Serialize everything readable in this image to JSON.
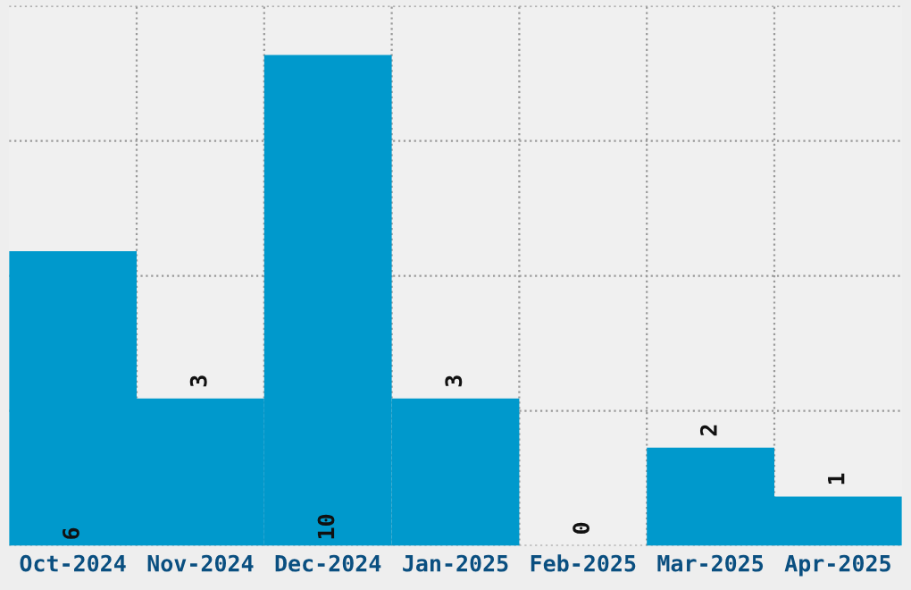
{
  "chart_data": {
    "type": "bar",
    "categories": [
      "Oct-2024",
      "Nov-2024",
      "Dec-2024",
      "Jan-2025",
      "Feb-2025",
      "Mar-2025",
      "Apr-2025"
    ],
    "values": [
      6,
      3,
      10,
      3,
      0,
      2,
      1
    ],
    "color": "#0099cc",
    "ylim": [
      0,
      11
    ],
    "yticks": [
      {
        "value": 0,
        "label": null
      },
      {
        "value": 2.75,
        "label": null
      },
      {
        "value": 5.5,
        "label": null
      },
      {
        "value": 8.25,
        "label": null
      },
      {
        "value": 11,
        "label": null
      }
    ],
    "tick_labels": "x",
    "grid": true,
    "data_labels": true
  }
}
